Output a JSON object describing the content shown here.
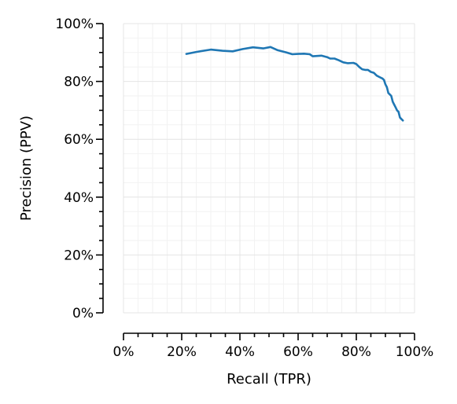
{
  "chart_data": {
    "type": "line",
    "title": "",
    "xlabel": "Recall (TPR)",
    "ylabel": "Precision (PPV)",
    "xlim": [
      0,
      100
    ],
    "ylim": [
      0,
      100
    ],
    "x_ticks": [
      "0%",
      "20%",
      "40%",
      "60%",
      "80%",
      "100%"
    ],
    "y_ticks": [
      "0%",
      "20%",
      "40%",
      "60%",
      "80%",
      "100%"
    ],
    "grid": true,
    "minor_grid": true,
    "legend": "none",
    "series": [
      {
        "color": "#1f77b4",
        "x": [
          21.6,
          25,
          30,
          34,
          37.5,
          41,
          44.5,
          48,
          50.5,
          53,
          56,
          58,
          60,
          62,
          64,
          65,
          66.5,
          68,
          70,
          71,
          72.5,
          74,
          75.5,
          77,
          79,
          80,
          81,
          82,
          83,
          84,
          85,
          86,
          87,
          88,
          89,
          89.5,
          90,
          90.5,
          91,
          91.5,
          92,
          92.5,
          93,
          93.5,
          94,
          94.5,
          95,
          95.5,
          96
        ],
        "y": [
          89.5,
          90.2,
          91.0,
          90.6,
          90.4,
          91.2,
          91.8,
          91.4,
          91.9,
          90.8,
          90.0,
          89.4,
          89.5,
          89.6,
          89.4,
          88.7,
          88.8,
          88.9,
          88.4,
          87.9,
          87.9,
          87.3,
          86.6,
          86.3,
          86.4,
          86.0,
          85.0,
          84.2,
          84.0,
          84.0,
          83.3,
          83.0,
          82.0,
          81.5,
          81.0,
          80.5,
          79.0,
          78.0,
          76.0,
          75.5,
          75.0,
          73.0,
          72.0,
          71.0,
          70.0,
          69.5,
          67.5,
          67.0,
          66.5
        ]
      }
    ]
  }
}
